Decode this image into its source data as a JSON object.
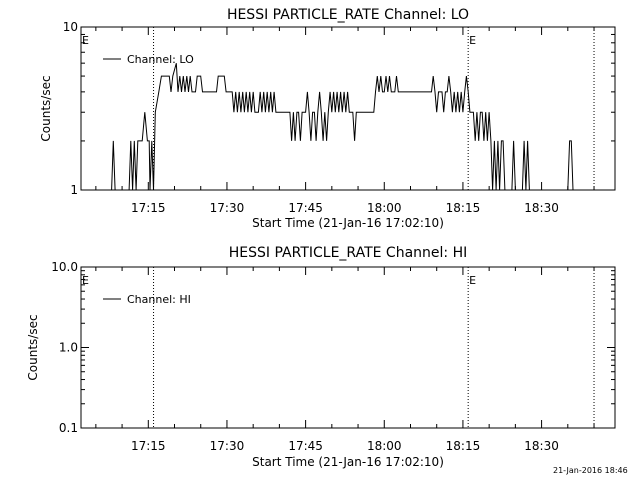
{
  "footer": {
    "timestamp": "21-Jan-2016 18:46"
  },
  "chart_data": [
    {
      "type": "line",
      "title": "HESSI PARTICLE_RATE Channel: LO",
      "xlabel": "Start Time (21-Jan-16 17:02:10)",
      "ylabel": "Counts/sec",
      "xlim": [
        "17:02:10",
        "18:44:00"
      ],
      "ylim": [
        1,
        10
      ],
      "yscale": "log",
      "y_tick_labels": [
        "1",
        "10"
      ],
      "x_tick_labels": [
        "17:15",
        "17:30",
        "17:45",
        "18:00",
        "18:15",
        "18:30"
      ],
      "grid": false,
      "legend": "top-left",
      "vlines": [
        {
          "time": "17:16",
          "label": "",
          "style": "dotted"
        },
        {
          "time": "18:16",
          "label": "E",
          "style": "dotted"
        },
        {
          "time": "18:40",
          "label": "",
          "style": "dotted"
        }
      ],
      "left_edge_label": "E",
      "series": [
        {
          "name": "Channel: LO",
          "color": "#000000",
          "points": [
            [
              "17:08:00",
              1
            ],
            [
              "17:08:20",
              2
            ],
            [
              "17:08:40",
              1
            ],
            [
              "17:11:20",
              1
            ],
            [
              "17:11:40",
              2
            ],
            [
              "17:12:00",
              1
            ],
            [
              "17:12:20",
              2
            ],
            [
              "17:12:40",
              1
            ],
            [
              "17:13:00",
              2
            ],
            [
              "17:13:30",
              2
            ],
            [
              "17:13:50",
              2
            ],
            [
              "17:14:20",
              3
            ],
            [
              "17:14:50",
              2
            ],
            [
              "17:15:10",
              2
            ],
            [
              "17:15:20",
              1
            ],
            [
              "17:15:40",
              2
            ],
            [
              "17:16:00",
              1
            ],
            [
              "17:16:20",
              3
            ],
            [
              "17:17:00",
              4
            ],
            [
              "17:17:30",
              5
            ],
            [
              "17:19:00",
              5
            ],
            [
              "17:19:20",
              4
            ],
            [
              "17:19:40",
              5
            ],
            [
              "17:20:20",
              6
            ],
            [
              "17:20:40",
              4
            ],
            [
              "17:21:00",
              5
            ],
            [
              "17:21:20",
              4
            ],
            [
              "17:21:40",
              5
            ],
            [
              "17:22:00",
              4
            ],
            [
              "17:22:20",
              5
            ],
            [
              "17:22:40",
              4
            ],
            [
              "17:23:00",
              5
            ],
            [
              "17:23:20",
              4
            ],
            [
              "17:24:00",
              4
            ],
            [
              "17:24:20",
              5
            ],
            [
              "17:25:00",
              5
            ],
            [
              "17:25:20",
              4
            ],
            [
              "17:28:00",
              4
            ],
            [
              "17:28:20",
              5
            ],
            [
              "17:29:30",
              5
            ],
            [
              "17:29:50",
              4
            ],
            [
              "17:31:00",
              4
            ],
            [
              "17:31:20",
              3
            ],
            [
              "17:31:40",
              4
            ],
            [
              "17:32:00",
              3
            ],
            [
              "17:32:20",
              4
            ],
            [
              "17:32:40",
              3
            ],
            [
              "17:33:00",
              4
            ],
            [
              "17:33:20",
              3
            ],
            [
              "17:33:40",
              4
            ],
            [
              "17:34:00",
              3
            ],
            [
              "17:34:20",
              4
            ],
            [
              "17:34:40",
              3
            ],
            [
              "17:35:00",
              4
            ],
            [
              "17:35:20",
              3
            ],
            [
              "17:36:00",
              3
            ],
            [
              "17:36:20",
              4
            ],
            [
              "17:36:40",
              3
            ],
            [
              "17:37:00",
              4
            ],
            [
              "17:37:20",
              3
            ],
            [
              "17:37:40",
              4
            ],
            [
              "17:38:00",
              3
            ],
            [
              "17:38:20",
              4
            ],
            [
              "17:38:40",
              3
            ],
            [
              "17:39:00",
              4
            ],
            [
              "17:39:20",
              3
            ],
            [
              "17:42:00",
              3
            ],
            [
              "17:42:20",
              2
            ],
            [
              "17:42:40",
              3
            ],
            [
              "17:43:00",
              2
            ],
            [
              "17:43:20",
              3
            ],
            [
              "17:43:40",
              3
            ],
            [
              "17:44:00",
              2
            ],
            [
              "17:44:20",
              3
            ],
            [
              "17:45:00",
              3
            ],
            [
              "17:45:20",
              4
            ],
            [
              "17:45:40",
              3
            ],
            [
              "17:46:00",
              2
            ],
            [
              "17:46:20",
              3
            ],
            [
              "17:46:40",
              3
            ],
            [
              "17:47:00",
              2
            ],
            [
              "17:47:20",
              3
            ],
            [
              "17:47:40",
              4
            ],
            [
              "17:48:00",
              3
            ],
            [
              "17:48:20",
              2
            ],
            [
              "17:48:40",
              3
            ],
            [
              "17:49:00",
              2
            ],
            [
              "17:49:20",
              3
            ],
            [
              "17:49:40",
              4
            ],
            [
              "17:50:00",
              3
            ],
            [
              "17:50:20",
              4
            ],
            [
              "17:50:40",
              3
            ],
            [
              "17:51:00",
              4
            ],
            [
              "17:51:20",
              3
            ],
            [
              "17:51:40",
              4
            ],
            [
              "17:52:00",
              3
            ],
            [
              "17:52:20",
              4
            ],
            [
              "17:52:40",
              3
            ],
            [
              "17:53:00",
              4
            ],
            [
              "17:53:20",
              3
            ],
            [
              "17:54:00",
              3
            ],
            [
              "17:54:20",
              2
            ],
            [
              "17:54:40",
              3
            ],
            [
              "17:58:00",
              3
            ],
            [
              "17:58:20",
              4
            ],
            [
              "17:58:40",
              5
            ],
            [
              "17:59:00",
              4
            ],
            [
              "17:59:20",
              5
            ],
            [
              "17:59:40",
              4
            ],
            [
              "18:00:00",
              4
            ],
            [
              "18:00:20",
              5
            ],
            [
              "18:00:40",
              4
            ],
            [
              "18:01:00",
              5
            ],
            [
              "18:01:20",
              4
            ],
            [
              "18:02:00",
              4
            ],
            [
              "18:02:20",
              5
            ],
            [
              "18:02:40",
              4
            ],
            [
              "18:09:00",
              4
            ],
            [
              "18:09:20",
              5
            ],
            [
              "18:09:40",
              4
            ],
            [
              "18:10:00",
              3
            ],
            [
              "18:10:20",
              4
            ],
            [
              "18:11:00",
              4
            ],
            [
              "18:11:20",
              3
            ],
            [
              "18:11:40",
              4
            ],
            [
              "18:12:00",
              4
            ],
            [
              "18:12:20",
              5
            ],
            [
              "18:12:40",
              4
            ],
            [
              "18:13:00",
              3
            ],
            [
              "18:13:20",
              4
            ],
            [
              "18:13:40",
              3
            ],
            [
              "18:14:00",
              4
            ],
            [
              "18:14:20",
              3
            ],
            [
              "18:14:40",
              4
            ],
            [
              "18:15:00",
              3
            ],
            [
              "18:15:20",
              4
            ],
            [
              "18:15:40",
              5
            ],
            [
              "18:16:00",
              4
            ],
            [
              "18:16:20",
              3
            ],
            [
              "18:17:00",
              3
            ],
            [
              "18:17:20",
              2
            ],
            [
              "18:17:40",
              3
            ],
            [
              "18:18:00",
              2
            ],
            [
              "18:18:20",
              3
            ],
            [
              "18:18:40",
              3
            ],
            [
              "18:19:00",
              2
            ],
            [
              "18:19:20",
              3
            ],
            [
              "18:19:40",
              2
            ],
            [
              "18:20:00",
              3
            ],
            [
              "18:20:20",
              2
            ],
            [
              "18:20:40",
              1
            ],
            [
              "18:21:00",
              2
            ],
            [
              "18:21:20",
              1
            ],
            [
              "18:21:40",
              2
            ],
            [
              "18:22:00",
              1
            ],
            [
              "18:22:20",
              2
            ],
            [
              "18:22:40",
              2
            ],
            [
              "18:23:00",
              1
            ],
            [
              "18:24:20",
              1
            ],
            [
              "18:24:40",
              2
            ],
            [
              "18:25:00",
              1
            ],
            [
              "18:26:20",
              1
            ],
            [
              "18:26:40",
              2
            ],
            [
              "18:27:00",
              1
            ],
            [
              "18:27:20",
              2
            ],
            [
              "18:27:40",
              1
            ],
            [
              "18:35:00",
              1
            ],
            [
              "18:35:20",
              2
            ],
            [
              "18:35:40",
              2
            ],
            [
              "18:36:00",
              1
            ]
          ]
        }
      ]
    },
    {
      "type": "line",
      "title": "HESSI PARTICLE_RATE Channel: HI",
      "xlabel": "Start Time (21-Jan-16 17:02:10)",
      "ylabel": "Counts/sec",
      "xlim": [
        "17:02:10",
        "18:44:00"
      ],
      "ylim": [
        0.1,
        10
      ],
      "yscale": "log",
      "y_tick_labels": [
        "0.1",
        "1.0",
        "10.0"
      ],
      "x_tick_labels": [
        "17:15",
        "17:30",
        "17:45",
        "18:00",
        "18:15",
        "18:30"
      ],
      "grid": false,
      "legend": "top-left",
      "vlines": [
        {
          "time": "17:16",
          "label": "",
          "style": "dotted"
        },
        {
          "time": "18:16",
          "label": "E",
          "style": "dotted"
        },
        {
          "time": "18:40",
          "label": "",
          "style": "dotted"
        }
      ],
      "left_edge_label": "E",
      "series": [
        {
          "name": "Channel: HI",
          "color": "#000000",
          "points": []
        }
      ]
    }
  ]
}
